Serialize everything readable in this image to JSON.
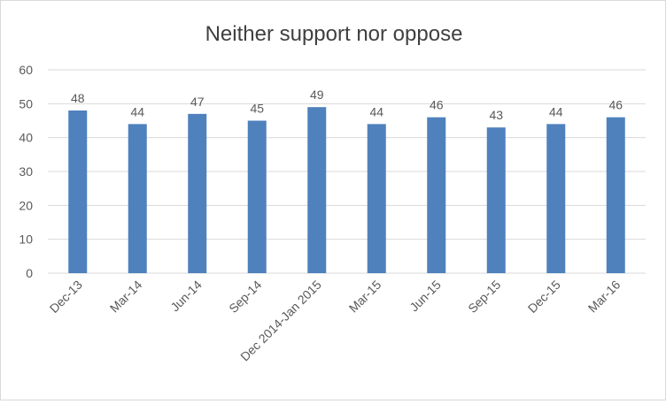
{
  "chart_data": {
    "type": "bar",
    "title": "Neither support nor oppose",
    "xlabel": "",
    "ylabel": "",
    "categories": [
      "Dec-13",
      "Mar-14",
      "Jun-14",
      "Sep-14",
      "Dec 2014-Jan 2015",
      "Mar-15",
      "Jun-15",
      "Sep-15",
      "Dec-15",
      "Mar-16"
    ],
    "values": [
      48,
      44,
      47,
      45,
      49,
      44,
      46,
      43,
      44,
      46
    ],
    "ylim": [
      0,
      60
    ],
    "yticks": [
      0,
      10,
      20,
      30,
      40,
      50,
      60
    ],
    "grid": true,
    "legend": "none",
    "bar_color": "#4f81bd",
    "grid_color": "#d9d9d9",
    "text_color": "#595959",
    "title_color": "#404040"
  }
}
